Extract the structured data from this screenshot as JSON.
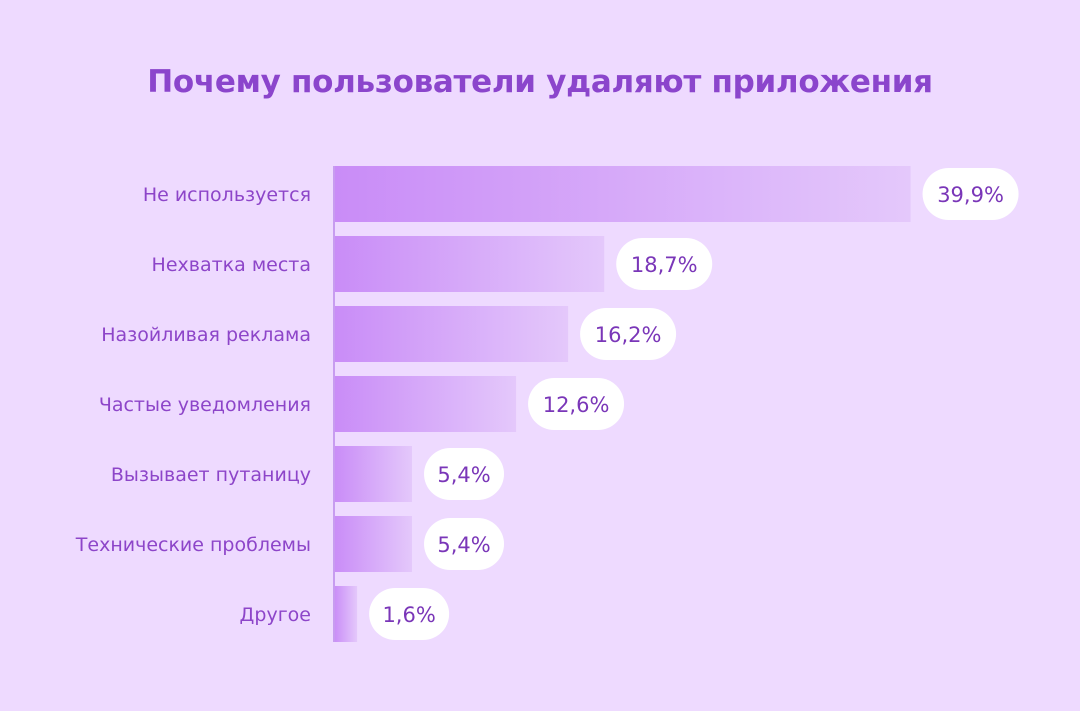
{
  "chart_data": {
    "type": "bar",
    "orientation": "horizontal",
    "title": "Почему пользователи удаляют приложения",
    "categories": [
      "Не используется",
      "Нехватка места",
      "Назойливая реклама",
      "Частые уведомления",
      "Вызывает путаницу",
      "Технические проблемы",
      "Другое"
    ],
    "values": [
      39.9,
      18.7,
      16.2,
      12.6,
      5.4,
      5.4,
      1.6
    ],
    "value_labels": [
      "39,9%",
      "18,7%",
      "16,2%",
      "12,6%",
      "5,4%",
      "5,4%",
      "1,6%"
    ],
    "colors": {
      "background": "#eedaff",
      "title": "#8b45cc",
      "bar_start": "#c98cf7",
      "bar_end": "#e4c8fb",
      "axis": "#c79cf0",
      "label_pill": "#ffffff"
    }
  }
}
